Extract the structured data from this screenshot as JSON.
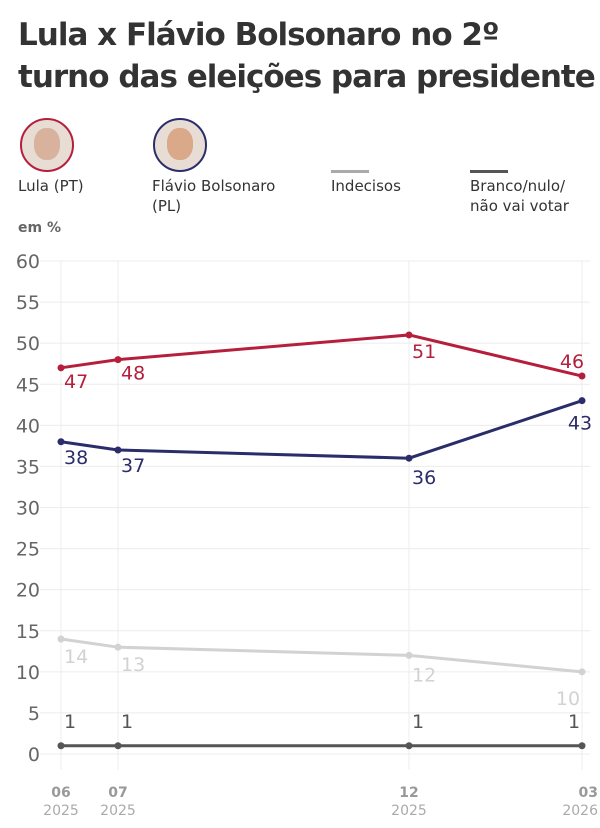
{
  "title": "Lula x Flávio Bolsonaro no 2º turno das eleições para presidente",
  "unit": "em %",
  "legend": [
    {
      "label": "Lula (PT)",
      "icon": "lula-photo",
      "color": "#b51f3c"
    },
    {
      "label": "Flávio Bolsonaro (PL)",
      "icon": "flavio-photo",
      "color": "#2b2d6b"
    },
    {
      "label": "Indecisos",
      "color": "#d2d2d2"
    },
    {
      "label": "Branco/nulo/ não vai votar",
      "color": "#555555"
    }
  ],
  "chart_data": {
    "type": "line",
    "x": [
      "06 2025",
      "07 2025",
      "12 2025",
      "03 2026"
    ],
    "x_month": [
      "06",
      "07",
      "12",
      "03"
    ],
    "x_year": [
      "2025",
      "2025",
      "2025",
      "2026"
    ],
    "ylim": [
      0,
      60
    ],
    "yticks": [
      0,
      5,
      10,
      15,
      20,
      25,
      30,
      35,
      40,
      45,
      50,
      55,
      60
    ],
    "grid": true,
    "series": [
      {
        "name": "Lula (PT)",
        "color": "#b51f3c",
        "values": [
          47,
          48,
          51,
          46
        ]
      },
      {
        "name": "Flávio Bolsonaro (PL)",
        "color": "#2b2d6b",
        "values": [
          38,
          37,
          36,
          43
        ]
      },
      {
        "name": "Indecisos",
        "color": "#d2d2d2",
        "values": [
          14,
          13,
          12,
          10
        ]
      },
      {
        "name": "Branco/nulo/ não vai votar",
        "color": "#555555",
        "values": [
          1,
          1,
          1,
          1
        ]
      }
    ]
  }
}
